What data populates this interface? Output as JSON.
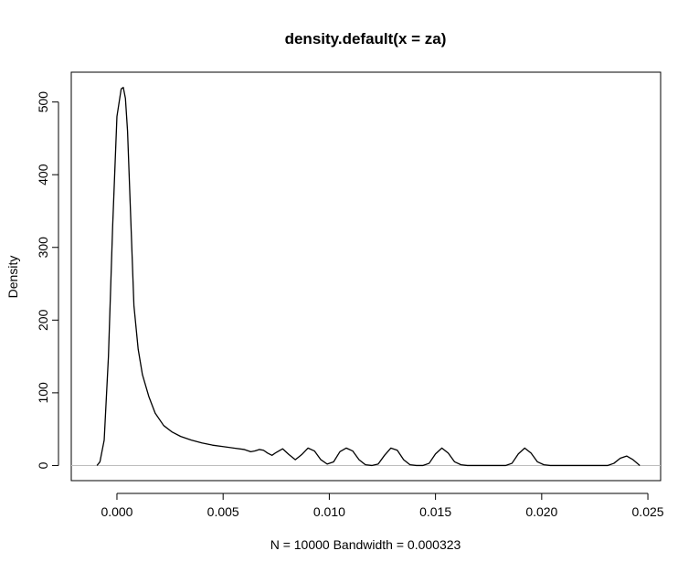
{
  "chart_data": {
    "type": "line",
    "title": "density.default(x = za)",
    "xlabel": "N = 10000   Bandwidth = 0.000323",
    "ylabel": "Density",
    "xlim": [
      -0.00215,
      0.0256
    ],
    "ylim": [
      -20.8,
      541
    ],
    "x_ticks": [
      0.0,
      0.005,
      0.01,
      0.015,
      0.02,
      0.025
    ],
    "x_tick_labels": [
      "0.000",
      "0.005",
      "0.010",
      "0.015",
      "0.020",
      "0.025"
    ],
    "y_ticks": [
      0,
      100,
      200,
      300,
      400,
      500
    ],
    "y_tick_labels": [
      "0",
      "100",
      "200",
      "300",
      "400",
      "500"
    ],
    "zero_line_color": "#bebebe",
    "line_color": "#000000",
    "grid": false,
    "series": [
      {
        "x": [
          -0.00094,
          -0.0008,
          -0.0006,
          -0.0004,
          -0.0002,
          0.0,
          0.0002,
          0.0003,
          0.0004,
          0.0005,
          0.0006,
          0.0008,
          0.001,
          0.0012,
          0.0015,
          0.0018,
          0.0022,
          0.0026,
          0.003,
          0.0035,
          0.004,
          0.0045,
          0.005,
          0.0055,
          0.006,
          0.0063,
          0.0065,
          0.0067,
          0.0069,
          0.0071,
          0.0073,
          0.0075,
          0.0078,
          0.0081,
          0.0084,
          0.0087,
          0.009,
          0.0093,
          0.0096,
          0.0099,
          0.0102,
          0.0105,
          0.0108,
          0.0111,
          0.0114,
          0.0117,
          0.012,
          0.0123,
          0.0126,
          0.0129,
          0.0132,
          0.0135,
          0.0138,
          0.0141,
          0.0144,
          0.0147,
          0.015,
          0.0153,
          0.0156,
          0.0159,
          0.0162,
          0.0165,
          0.0168,
          0.0171,
          0.0174,
          0.0177,
          0.018,
          0.0183,
          0.0186,
          0.0189,
          0.0192,
          0.0195,
          0.0198,
          0.0201,
          0.0204,
          0.0207,
          0.021,
          0.0213,
          0.0216,
          0.0219,
          0.0222,
          0.0225,
          0.0228,
          0.0231,
          0.0234,
          0.0237,
          0.024,
          0.0243,
          0.02462
        ],
        "y": [
          0,
          5,
          35,
          150,
          330,
          480,
          518,
          520,
          505,
          460,
          380,
          220,
          160,
          125,
          95,
          72,
          55,
          46,
          40,
          35,
          31,
          28,
          26,
          24,
          22,
          19,
          20,
          22,
          21,
          17,
          14,
          18,
          23,
          15,
          8,
          15,
          24,
          20,
          8,
          2,
          5,
          19,
          24,
          20,
          8,
          1,
          0,
          2,
          14,
          24,
          21,
          8,
          1,
          0,
          0,
          3,
          16,
          24,
          17,
          5,
          1,
          0,
          0,
          0,
          0,
          0,
          0,
          0,
          3,
          16,
          24,
          17,
          5,
          1,
          0,
          0,
          0,
          0,
          0,
          0,
          0,
          0,
          0,
          0,
          3,
          10,
          13,
          8,
          0
        ]
      }
    ]
  }
}
